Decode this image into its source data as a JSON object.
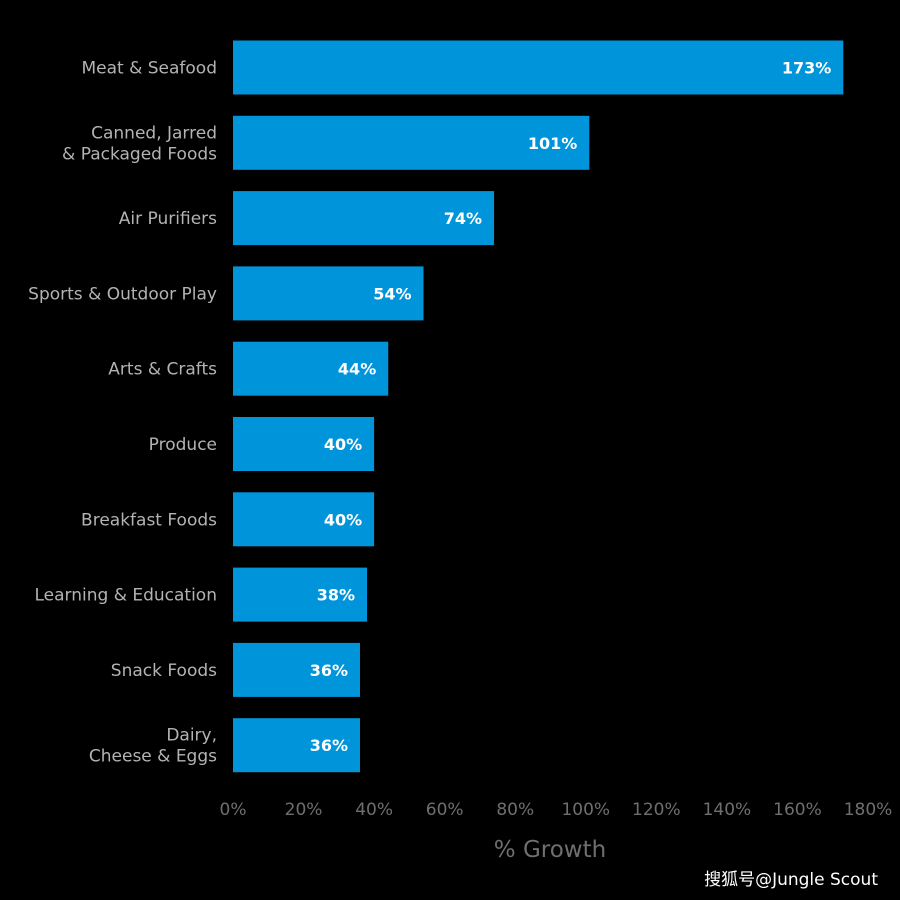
{
  "chart_data": {
    "type": "bar",
    "orientation": "horizontal",
    "categories": [
      [
        "Meat & Seafood"
      ],
      [
        "Canned, Jarred",
        "& Packaged Foods"
      ],
      [
        "Air Purifiers"
      ],
      [
        "Sports & Outdoor Play"
      ],
      [
        "Arts & Crafts"
      ],
      [
        "Produce"
      ],
      [
        "Breakfast Foods"
      ],
      [
        "Learning & Education"
      ],
      [
        "Snack Foods"
      ],
      [
        "Dairy,",
        "Cheese & Eggs"
      ]
    ],
    "values": [
      173,
      101,
      74,
      54,
      44,
      40,
      40,
      38,
      36,
      36
    ],
    "value_labels": [
      "173%",
      "101%",
      "74%",
      "54%",
      "44%",
      "40%",
      "40%",
      "38%",
      "36%",
      "36%"
    ],
    "xlabel": "% Growth",
    "xlim": [
      0,
      180
    ],
    "xticks": [
      0,
      20,
      40,
      60,
      80,
      100,
      120,
      140,
      160,
      180
    ],
    "xtick_labels": [
      "0%",
      "20%",
      "40%",
      "60%",
      "80%",
      "100%",
      "120%",
      "140%",
      "160%",
      "180%"
    ],
    "grid": false,
    "colors": {
      "background": "#000000",
      "bar": "#0095db",
      "category_text": "#b3b3b3",
      "tick_text": "#6f6f6f",
      "value_text": "#ffffff"
    }
  },
  "watermark": "搜狐号@Jungle Scout"
}
